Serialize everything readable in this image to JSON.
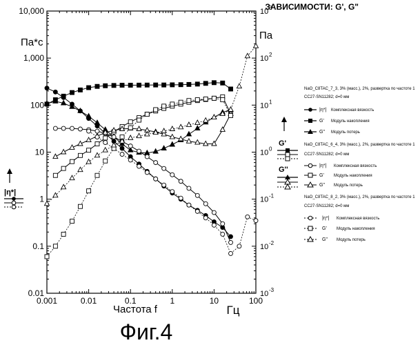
{
  "header": {
    "title": "ЗАВИСИМОСТИ: G', G\"",
    "left_unit": "Па*с",
    "right_unit": "Па",
    "x_label_prefix": "Частота f",
    "x_label_unit": "Гц",
    "figure_caption": "Фиг.4"
  },
  "side_labels": {
    "eta_label": "|η*|",
    "g_prime_label": "G'",
    "g_double_label": "G''"
  },
  "legend": {
    "groups": [
      {
        "header": "NaO_C8TAC_7_3, 3% (масс.), 2%, развертка по частоте 1",
        "sub": "CC27-SN11282; d=0 мм",
        "entries": [
          {
            "symbol": "|η*|",
            "label": "Комплексная вязкость",
            "marker": "filled-circle"
          },
          {
            "symbol": "G'",
            "label": "Модуль накопления",
            "marker": "filled-square"
          },
          {
            "symbol": "G\"",
            "label": "Модуль потерь",
            "marker": "filled-triangle"
          }
        ]
      },
      {
        "header": "NaO_C8TAC_6_4, 3% (масс.), 2%, развертка по частоте 1",
        "sub": "CC27-SN11282; d=0 мм",
        "entries": [
          {
            "symbol": "|η*|",
            "label": "Комплексная вязкость",
            "marker": "open-circle"
          },
          {
            "symbol": "G'",
            "label": "Модуль накопления",
            "marker": "open-square"
          },
          {
            "symbol": "G\"",
            "label": "Модуль потерь",
            "marker": "open-triangle"
          }
        ]
      },
      {
        "header": "NaO_C8TAC_8_2, 3% (масс.), 2%, развертка по частоте 1",
        "sub": "CC27-SN11282; d=0 мм",
        "entries": [
          {
            "symbol": "|η*|",
            "label": "Комплексная вязкость",
            "marker": "dot-circle"
          },
          {
            "symbol": "G'",
            "label": "Модуль накопления",
            "marker": "dot-square"
          },
          {
            "symbol": "G\"",
            "label": "Модуль потерь",
            "marker": "dot-triangle"
          }
        ]
      }
    ]
  },
  "chart_data": {
    "type": "line",
    "title": "ЗАВИСИМОСТИ: G', G\"",
    "xlabel": "Частота f, Гц",
    "ylabel_left": "Па*с",
    "ylabel_right": "Па",
    "x_scale": "log",
    "y_scale": "log",
    "xlim": [
      0.001,
      100
    ],
    "ylim_left": [
      0.01,
      10000
    ],
    "ylim_right": [
      0.001,
      1000
    ],
    "x_ticks": [
      "0.001",
      "0.01",
      "0.1",
      "1",
      "10",
      "100"
    ],
    "y_left_ticks": [
      "0.01",
      "0.1",
      "1",
      "10",
      "100",
      "1,000",
      "10,000"
    ],
    "y_right_ticks": [
      "10-3",
      "10-2",
      "10-1",
      "100",
      "101",
      "102",
      "103"
    ],
    "series": [
      {
        "name": "|η*| Комплексная вязкость (7_3)",
        "axis": "left",
        "style": "solid",
        "marker": "filled-circle",
        "x": [
          0.001,
          0.0016,
          0.0025,
          0.004,
          0.0063,
          0.01,
          0.016,
          0.025,
          0.04,
          0.063,
          0.1,
          0.16,
          0.25,
          0.4,
          0.63,
          1,
          1.6,
          2.5,
          4,
          6.3,
          10,
          16,
          25
        ],
        "y": [
          230,
          190,
          145,
          105,
          75,
          52,
          36,
          25,
          17,
          12,
          8,
          5.6,
          3.9,
          2.7,
          1.9,
          1.35,
          1.0,
          0.75,
          0.58,
          0.45,
          0.33,
          0.25,
          0.16
        ]
      },
      {
        "name": "G' Модуль накопления (7_3)",
        "axis": "left",
        "style": "solid",
        "marker": "filled-square",
        "x": [
          0.001,
          0.0016,
          0.0025,
          0.004,
          0.0063,
          0.01,
          0.016,
          0.025,
          0.04,
          0.063,
          0.1,
          0.16,
          0.25,
          0.4,
          0.63,
          1,
          1.6,
          2.5,
          4,
          6.3,
          10,
          16,
          25
        ],
        "y": [
          105,
          130,
          155,
          185,
          210,
          235,
          250,
          258,
          262,
          265,
          265,
          266,
          267,
          268,
          268,
          270,
          272,
          275,
          280,
          290,
          300,
          295,
          220
        ]
      },
      {
        "name": "G\" Модуль потерь (7_3)",
        "axis": "left",
        "style": "solid",
        "marker": "filled-triangle",
        "x": [
          0.001,
          0.0016,
          0.0025,
          0.004,
          0.0063,
          0.01,
          0.016,
          0.025,
          0.04,
          0.063,
          0.1,
          0.16,
          0.25,
          0.4,
          0.63,
          1,
          1.6,
          2.5,
          4,
          6.3,
          10,
          16,
          25
        ],
        "y": [
          108,
          120,
          110,
          92,
          75,
          58,
          42,
          30,
          21,
          15,
          11,
          9.8,
          9.6,
          10.3,
          12,
          14.5,
          18,
          24,
          32,
          43,
          55,
          70,
          80
        ]
      },
      {
        "name": "|η*| Комплексная вязкость (6_4)",
        "axis": "left",
        "style": "solid",
        "marker": "open-circle",
        "x": [
          0.0016,
          0.0025,
          0.004,
          0.0063,
          0.01,
          0.016,
          0.025,
          0.04,
          0.063,
          0.1,
          0.16,
          0.25,
          0.4,
          0.63,
          1,
          1.6,
          2.5,
          4,
          6.3,
          10,
          16,
          25
        ],
        "y": [
          32,
          32,
          32,
          31,
          30,
          28,
          25,
          21,
          17,
          13.5,
          10.5,
          8,
          6,
          4.5,
          3.3,
          2.4,
          1.7,
          1.2,
          0.8,
          0.52,
          0.3,
          0.12
        ]
      },
      {
        "name": "G' Модуль накопления (6_4)",
        "axis": "left",
        "style": "solid",
        "marker": "open-square",
        "x": [
          0.0016,
          0.0025,
          0.004,
          0.0063,
          0.01,
          0.016,
          0.025,
          0.04,
          0.063,
          0.1,
          0.16,
          0.25,
          0.4,
          0.63,
          1,
          1.6,
          2.5,
          4,
          6.3,
          10,
          16,
          25
        ],
        "y": [
          3.2,
          4.5,
          6.3,
          8.5,
          11,
          15,
          20,
          27,
          35,
          44,
          54,
          64,
          75,
          85,
          95,
          105,
          115,
          125,
          132,
          140,
          150,
          65
        ]
      },
      {
        "name": "G\" Модуль потерь (6_4)",
        "axis": "left",
        "style": "solid",
        "marker": "open-triangle",
        "x": [
          0.0016,
          0.0025,
          0.004,
          0.0063,
          0.01,
          0.016,
          0.025,
          0.04,
          0.063,
          0.1,
          0.16,
          0.25,
          0.4,
          0.63,
          1,
          1.6,
          2.5,
          4,
          6.3,
          10,
          16,
          25
        ],
        "y": [
          8,
          10,
          12.5,
          15,
          18,
          22,
          26,
          29,
          31,
          32,
          31,
          29,
          27,
          24,
          21,
          19,
          17,
          16,
          15,
          15,
          30,
          65
        ]
      },
      {
        "name": "|η*| Комплексная вязкость (8_2)",
        "axis": "left",
        "style": "dotted",
        "marker": "dot-circle",
        "x": [
          0.01,
          0.016,
          0.025,
          0.04,
          0.063,
          0.1,
          0.16,
          0.25,
          0.4,
          0.63,
          1,
          1.6,
          2.5,
          4,
          6.3,
          10,
          16,
          25,
          40,
          63,
          100
        ],
        "y": [
          28,
          21,
          16,
          12,
          9,
          6.8,
          5,
          3.7,
          2.7,
          2.0,
          1.45,
          1.05,
          0.75,
          0.55,
          0.4,
          0.28,
          0.18,
          0.07,
          0.1,
          0.42,
          0.35
        ]
      },
      {
        "name": "G' Модуль накопления (8_2)",
        "axis": "left",
        "style": "dotted",
        "marker": "dot-square",
        "x": [
          0.001,
          0.0016,
          0.0025,
          0.004,
          0.0063,
          0.01,
          0.016,
          0.025,
          0.04,
          0.063,
          0.1,
          0.16,
          0.25,
          0.4,
          0.63,
          1,
          1.6,
          2.5,
          4,
          6.3,
          10,
          16,
          25
        ],
        "y": [
          0.06,
          0.1,
          0.18,
          0.34,
          0.7,
          1.5,
          3.2,
          6.5,
          12,
          21,
          33,
          48,
          64,
          80,
          95,
          105,
          115,
          125,
          130,
          135,
          140,
          130,
          60
        ]
      },
      {
        "name": "G\" Модуль потерь (8_2)",
        "axis": "left",
        "style": "dotted",
        "marker": "dot-triangle",
        "x": [
          0.001,
          0.0016,
          0.0025,
          0.004,
          0.0063,
          0.01,
          0.016,
          0.025,
          0.04,
          0.063,
          0.1,
          0.16,
          0.25,
          0.4,
          0.63,
          1,
          1.6,
          2.5,
          4,
          6.3,
          10,
          16,
          25,
          40,
          63,
          100
        ],
        "y": [
          0.8,
          1.2,
          1.8,
          2.8,
          4.2,
          6.2,
          8.5,
          11,
          14,
          17,
          20,
          22,
          24,
          26,
          28,
          31,
          34,
          38,
          42,
          47,
          55,
          65,
          80,
          250,
          1100,
          1800
        ]
      }
    ]
  }
}
